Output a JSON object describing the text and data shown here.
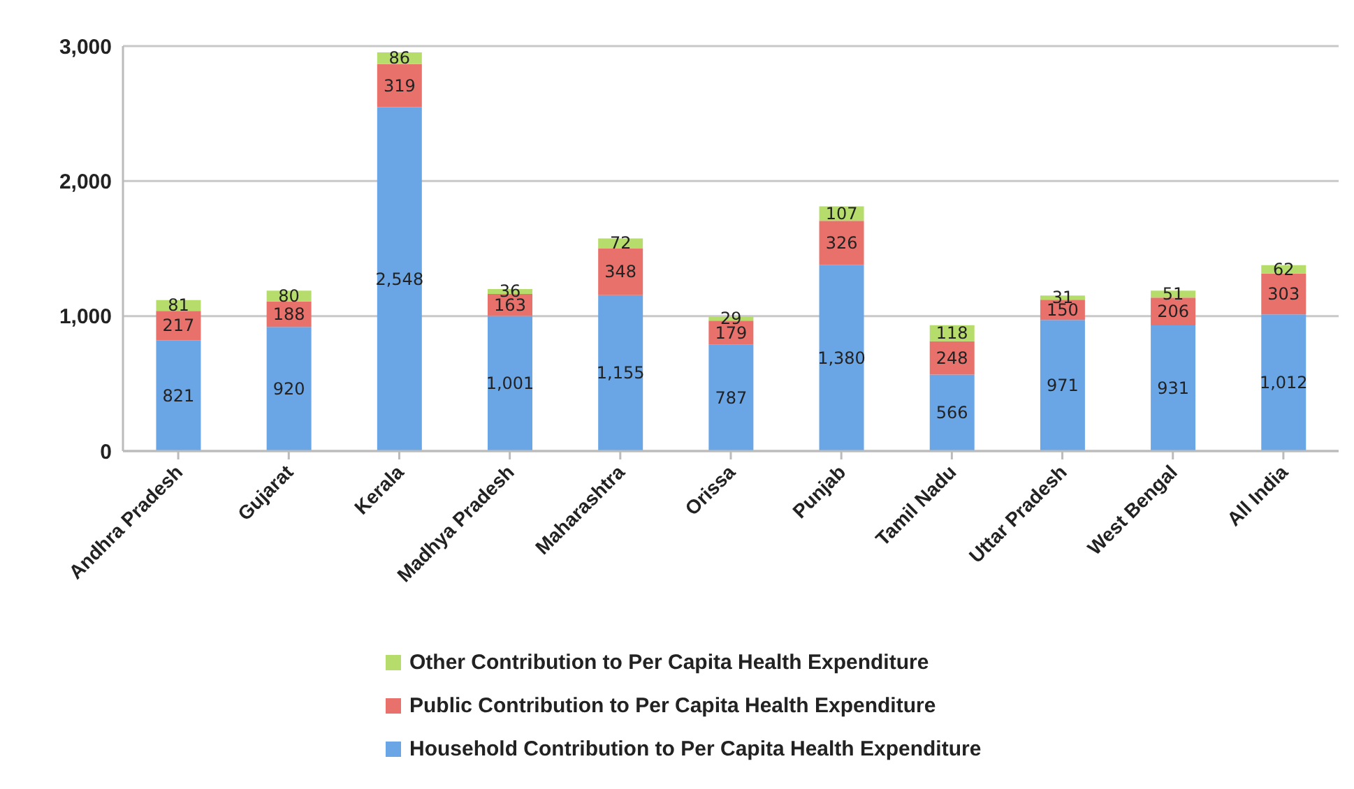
{
  "chart_data": {
    "type": "bar",
    "stacked": true,
    "categories": [
      "Andhra Pradesh",
      "Gujarat",
      "Kerala",
      "Madhya Pradesh",
      "Maharashtra",
      "Orissa",
      "Punjab",
      "Tamil Nadu",
      "Uttar Pradesh",
      "West Bengal",
      "All India"
    ],
    "series": [
      {
        "name": "Household Contribution to Per Capita Health Expenditure",
        "color": "#6aa6e6",
        "values": [
          821,
          920,
          2548,
          1001,
          1155,
          787,
          1380,
          566,
          971,
          931,
          1012
        ],
        "value_labels": [
          "821",
          "920",
          "2,548",
          "1,001",
          "1,155",
          "787",
          "1,380",
          "566",
          "971",
          "931",
          "1,012"
        ]
      },
      {
        "name": "Public Contribution to Per Capita Health Expenditure",
        "color": "#e8716b",
        "values": [
          217,
          188,
          319,
          163,
          348,
          179,
          326,
          248,
          150,
          206,
          303
        ],
        "value_labels": [
          "217",
          "188",
          "319",
          "163",
          "348",
          "179",
          "326",
          "248",
          "150",
          "206",
          "303"
        ]
      },
      {
        "name": "Other Contribution to Per Capita Health Expenditure",
        "color": "#b6dc6c",
        "values": [
          81,
          80,
          86,
          36,
          72,
          29,
          107,
          118,
          31,
          51,
          62
        ],
        "value_labels": [
          "81",
          "80",
          "86",
          "36",
          "72",
          "29",
          "107",
          "118",
          "31",
          "51",
          "62"
        ]
      }
    ],
    "ylim": [
      0,
      3000
    ],
    "yticks": [
      0,
      {
        "value": 1000,
        "label": "1,000"
      },
      {
        "value": 2000,
        "label": "2,000"
      },
      {
        "value": 3000,
        "label": "3,000"
      }
    ],
    "grid": "y",
    "legend": "bottom"
  }
}
